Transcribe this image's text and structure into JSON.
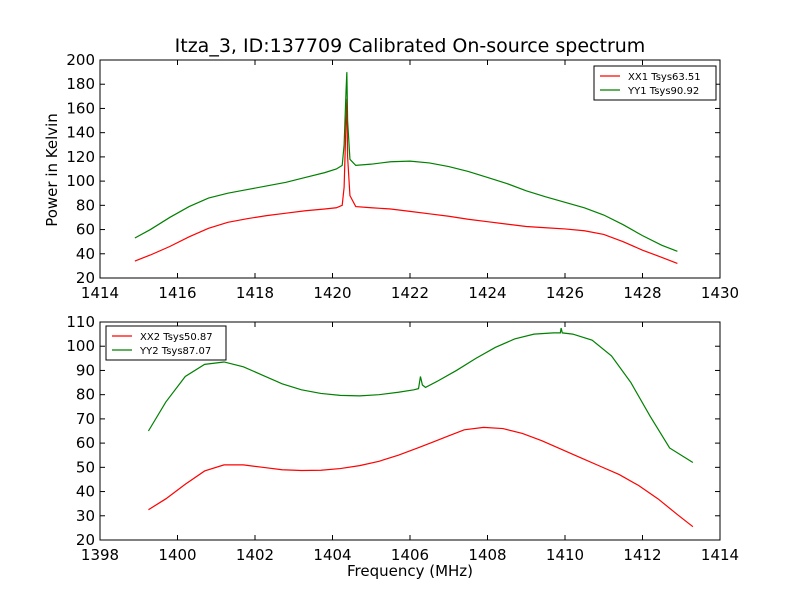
{
  "chart_data": [
    {
      "type": "line",
      "title": "Itza_3, ID:137709 Calibrated On-source spectrum",
      "xlabel": "",
      "ylabel": "Power in Kelvin",
      "xlim": [
        1414,
        1430
      ],
      "ylim": [
        20,
        200
      ],
      "xticks": [
        "1414",
        "1416",
        "1418",
        "1420",
        "1422",
        "1424",
        "1426",
        "1428",
        "1430"
      ],
      "yticks": [
        "20",
        "40",
        "60",
        "80",
        "100",
        "120",
        "140",
        "160",
        "180",
        "200"
      ],
      "legend_position": "top-right",
      "series": [
        {
          "name": "XX1 Tsys63.51",
          "color": "#ff0000",
          "x": [
            1414.9,
            1415.3,
            1415.8,
            1416.3,
            1416.8,
            1417.3,
            1417.8,
            1418.3,
            1418.8,
            1419.3,
            1419.8,
            1420.1,
            1420.25,
            1420.3,
            1420.35,
            1420.37,
            1420.39,
            1420.45,
            1420.6,
            1421.0,
            1421.5,
            1422.0,
            1422.5,
            1423.0,
            1423.5,
            1424.0,
            1424.5,
            1425.0,
            1425.5,
            1426.0,
            1426.5,
            1427.0,
            1427.5,
            1428.0,
            1428.5,
            1428.9
          ],
          "y": [
            34,
            39,
            46,
            54,
            61,
            66,
            69,
            71.5,
            73.5,
            75.5,
            77,
            78,
            80,
            95,
            150,
            168,
            120,
            88,
            79,
            78,
            77,
            75,
            73,
            71,
            68.5,
            66.5,
            64.5,
            62.5,
            61.5,
            60.5,
            59,
            56,
            50,
            43,
            37,
            32
          ]
        },
        {
          "name": "YY1 Tsys90.92",
          "color": "#008000",
          "x": [
            1414.9,
            1415.3,
            1415.8,
            1416.3,
            1416.8,
            1417.3,
            1417.8,
            1418.3,
            1418.8,
            1419.3,
            1419.8,
            1420.1,
            1420.25,
            1420.3,
            1420.35,
            1420.37,
            1420.39,
            1420.45,
            1420.6,
            1421.0,
            1421.5,
            1422.0,
            1422.5,
            1423.0,
            1423.5,
            1424.0,
            1424.5,
            1425.0,
            1425.5,
            1426.0,
            1426.5,
            1427.0,
            1427.5,
            1428.0,
            1428.5,
            1428.9
          ],
          "y": [
            53,
            60,
            70,
            79,
            86,
            90,
            93,
            96,
            99,
            103,
            107,
            110,
            113,
            130,
            175,
            190,
            150,
            118,
            113,
            114,
            116,
            116.5,
            115,
            112,
            108,
            103,
            98,
            92,
            87,
            82.5,
            78,
            72,
            64,
            55,
            47,
            42
          ]
        }
      ]
    },
    {
      "type": "line",
      "title": "",
      "xlabel": "Frequency (MHz)",
      "ylabel": "",
      "xlim": [
        1398,
        1414
      ],
      "ylim": [
        20,
        110
      ],
      "xticks": [
        "1398",
        "1400",
        "1402",
        "1404",
        "1406",
        "1408",
        "1410",
        "1412",
        "1414"
      ],
      "yticks": [
        "20",
        "30",
        "40",
        "50",
        "60",
        "70",
        "80",
        "90",
        "100",
        "110"
      ],
      "legend_position": "top-left",
      "series": [
        {
          "name": "XX2 Tsys50.87",
          "color": "#ff0000",
          "x": [
            1399.25,
            1399.7,
            1400.2,
            1400.7,
            1401.2,
            1401.7,
            1402.2,
            1402.7,
            1403.2,
            1403.7,
            1404.2,
            1404.7,
            1405.2,
            1405.7,
            1406.2,
            1406.6,
            1407.0,
            1407.4,
            1407.9,
            1408.4,
            1408.9,
            1409.4,
            1409.9,
            1410.4,
            1410.9,
            1411.4,
            1411.9,
            1412.4,
            1412.9,
            1413.3
          ],
          "y": [
            32.5,
            37,
            43,
            48.5,
            51,
            51,
            50,
            49,
            48.7,
            48.8,
            49.5,
            50.7,
            52.5,
            55,
            58,
            60.5,
            63,
            65.5,
            66.5,
            66,
            64,
            61,
            57.5,
            54,
            50.5,
            47,
            42.5,
            37,
            30.5,
            25.5
          ]
        },
        {
          "name": "YY2 Tsys87.07",
          "color": "#008000",
          "x": [
            1399.25,
            1399.7,
            1400.2,
            1400.7,
            1401.2,
            1401.7,
            1402.2,
            1402.7,
            1403.2,
            1403.7,
            1404.2,
            1404.7,
            1405.2,
            1405.7,
            1406.1,
            1406.22,
            1406.27,
            1406.32,
            1406.4,
            1406.7,
            1407.2,
            1407.7,
            1408.2,
            1408.7,
            1409.2,
            1409.7,
            1409.88,
            1409.9,
            1409.93,
            1410.2,
            1410.7,
            1411.2,
            1411.7,
            1412.2,
            1412.7,
            1413.3
          ],
          "y": [
            65,
            77,
            87.5,
            92.5,
            93.5,
            91.5,
            88,
            84.5,
            82,
            80.5,
            79.7,
            79.5,
            80,
            81,
            82,
            82.5,
            87.5,
            84,
            83,
            85.5,
            90,
            95,
            99.5,
            103,
            105,
            105.5,
            105.5,
            107.5,
            105.5,
            105,
            102.5,
            96,
            85,
            71,
            58,
            52
          ]
        }
      ]
    }
  ]
}
